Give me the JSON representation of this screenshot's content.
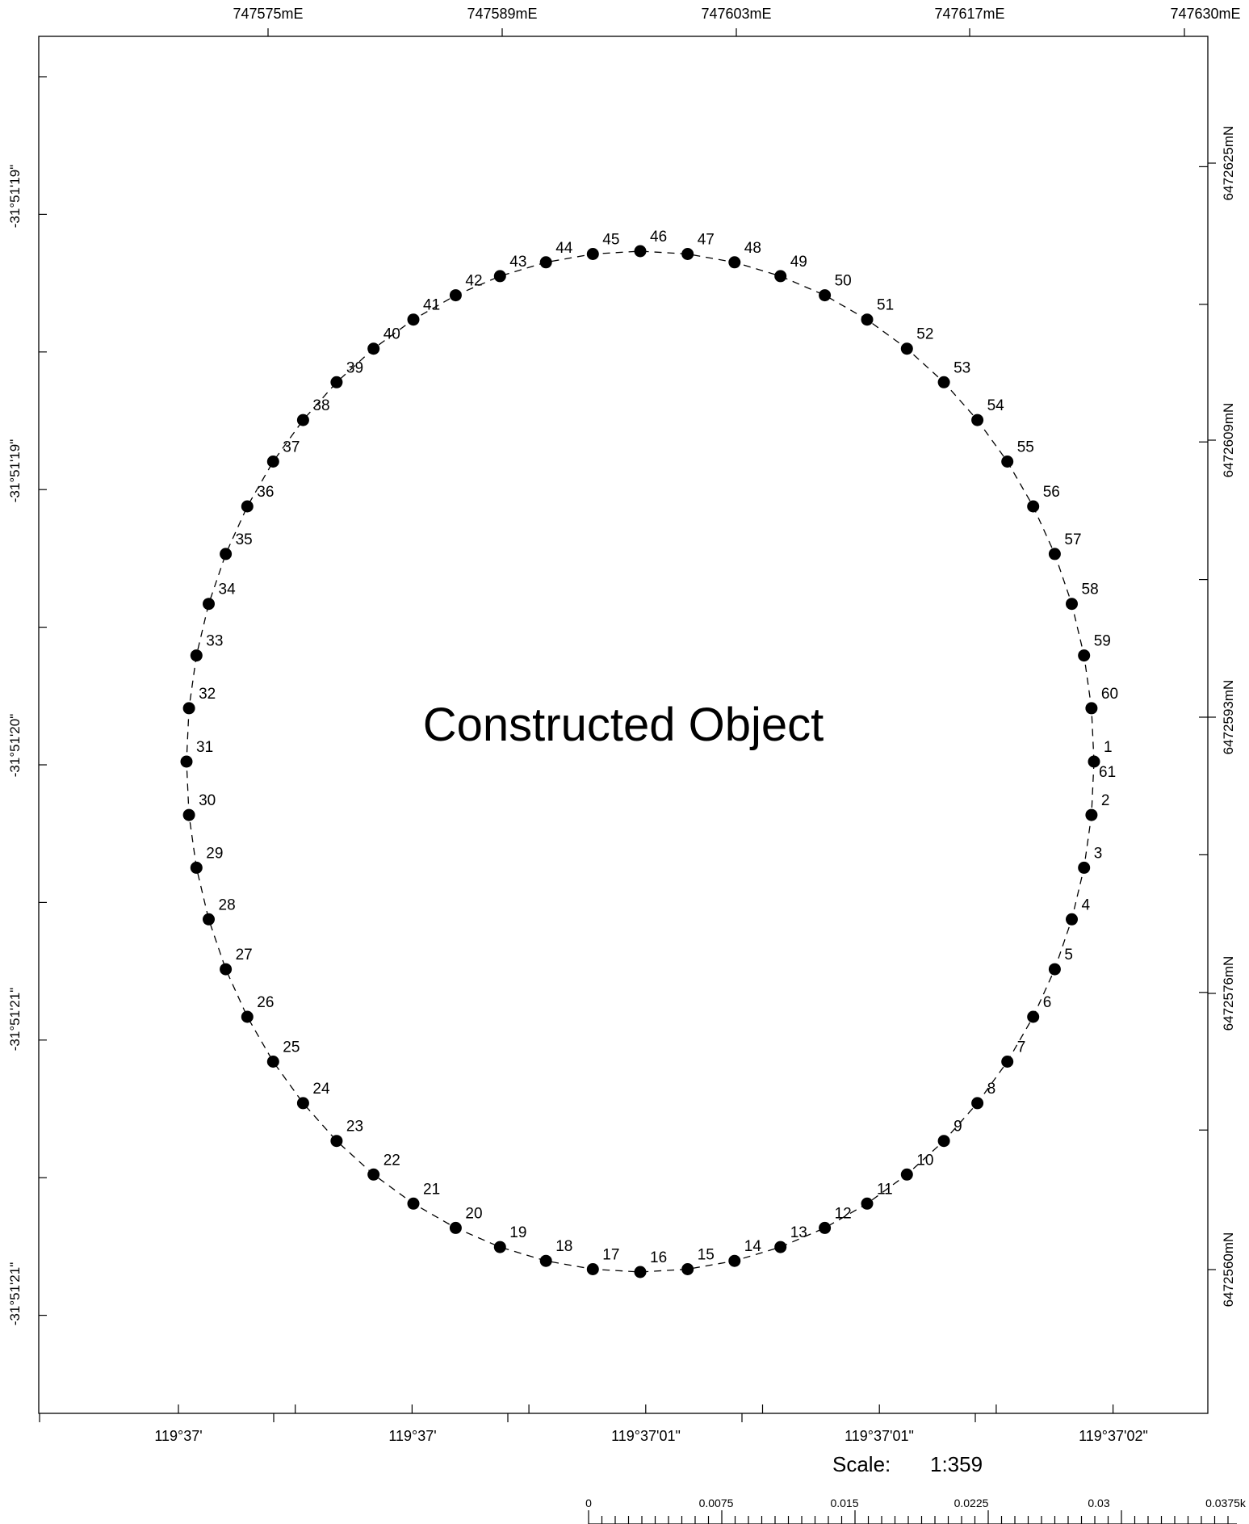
{
  "map": {
    "title": "Constructed Object",
    "easting_labels": [
      "747575mE",
      "747589mE",
      "747603mE",
      "747617mE",
      "747630mE"
    ],
    "northing_labels": [
      "6472625mN",
      "6472609mN",
      "6472593mN",
      "6472576mN",
      "6472560mN"
    ],
    "latitude_labels": [
      "-31°51'19\"",
      "-31°51'19\"",
      "-31°51'20\"",
      "-31°51'21\"",
      "-31°51'21\""
    ],
    "longitude_labels": [
      "119°37'",
      "119°37'",
      "119°37'01\"",
      "119°37'01\"",
      "119°37'02\""
    ],
    "scale": {
      "label": "Scale:",
      "value": "1:359"
    },
    "scalebar": {
      "labels": [
        "0",
        "0.0075",
        "0.015",
        "0.0225",
        "0.03",
        "0.0375k"
      ]
    },
    "marker_color": "#000000",
    "line_style": "dashed",
    "points": [
      {
        "id": "1"
      },
      {
        "id": "2"
      },
      {
        "id": "3"
      },
      {
        "id": "4"
      },
      {
        "id": "5"
      },
      {
        "id": "6"
      },
      {
        "id": "7"
      },
      {
        "id": "8"
      },
      {
        "id": "9"
      },
      {
        "id": "10"
      },
      {
        "id": "11"
      },
      {
        "id": "12"
      },
      {
        "id": "13"
      },
      {
        "id": "14"
      },
      {
        "id": "15"
      },
      {
        "id": "16"
      },
      {
        "id": "17"
      },
      {
        "id": "18"
      },
      {
        "id": "19"
      },
      {
        "id": "20"
      },
      {
        "id": "21"
      },
      {
        "id": "22"
      },
      {
        "id": "23"
      },
      {
        "id": "24"
      },
      {
        "id": "25"
      },
      {
        "id": "26"
      },
      {
        "id": "27"
      },
      {
        "id": "28"
      },
      {
        "id": "29"
      },
      {
        "id": "30"
      },
      {
        "id": "31"
      },
      {
        "id": "32"
      },
      {
        "id": "33"
      },
      {
        "id": "34"
      },
      {
        "id": "35"
      },
      {
        "id": "36"
      },
      {
        "id": "37"
      },
      {
        "id": "38"
      },
      {
        "id": "39"
      },
      {
        "id": "40"
      },
      {
        "id": "41"
      },
      {
        "id": "42"
      },
      {
        "id": "43"
      },
      {
        "id": "44"
      },
      {
        "id": "45"
      },
      {
        "id": "46"
      },
      {
        "id": "47"
      },
      {
        "id": "48"
      },
      {
        "id": "49"
      },
      {
        "id": "50"
      },
      {
        "id": "51"
      },
      {
        "id": "52"
      },
      {
        "id": "53"
      },
      {
        "id": "54"
      },
      {
        "id": "55"
      },
      {
        "id": "56"
      },
      {
        "id": "57"
      },
      {
        "id": "58"
      },
      {
        "id": "59"
      },
      {
        "id": "60"
      },
      {
        "id": "61"
      }
    ]
  }
}
